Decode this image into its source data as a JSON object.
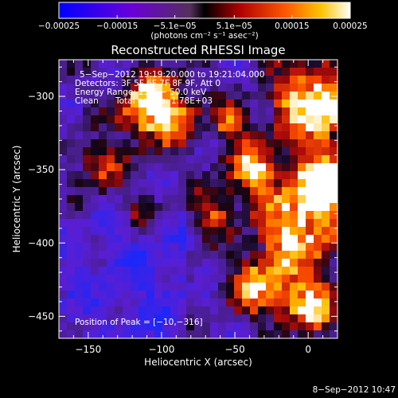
{
  "chart_data": {
    "type": "heatmap",
    "title": "Reconstructed RHESSI Image",
    "xlabel": "Heliocentric X (arcsec)",
    "ylabel": "Heliocentric Y (arcsec)",
    "xlim": [
      -170,
      20
    ],
    "ylim": [
      -465,
      -275
    ],
    "x_ticks": [
      -150,
      -100,
      -50,
      0
    ],
    "x_tick_labels": [
      "−150",
      "−100",
      "−50",
      "0"
    ],
    "y_ticks": [
      -450,
      -400,
      -350,
      -300
    ],
    "y_tick_labels": [
      "−450",
      "−400",
      "−350",
      "−300"
    ],
    "colorbar": {
      "range": [
        -0.00025,
        0.00025
      ],
      "ticks": [
        -0.00025,
        -0.00015,
        -5.1e-05,
        5.1e-05,
        0.00015,
        0.00025
      ],
      "tick_labels": [
        "−0.00025",
        "−0.00015",
        "−5.1e−05",
        "5.1e−05",
        "0.00015",
        "0.00025"
      ],
      "unit_label": "(photons cm⁻² s⁻¹ asec⁻²)"
    },
    "annotations": {
      "time_range": "5−Sep−2012 19:19:20.000 to 19:21:04.000",
      "detectors": "Detectors: 3F 5F 6F 7F 8F 9F, Att 0",
      "energy_range": "Energy Range: 25.0 − 50.0 keV",
      "method": "Clean",
      "total_counts": "Total counts: 1.78E+03",
      "peak": "Position of Peak = [−10,−316]"
    },
    "peak_position": [
      -10,
      -316
    ],
    "grid": false
  },
  "footer": {
    "date_stamp": "8−Sep−2012 10:47"
  }
}
